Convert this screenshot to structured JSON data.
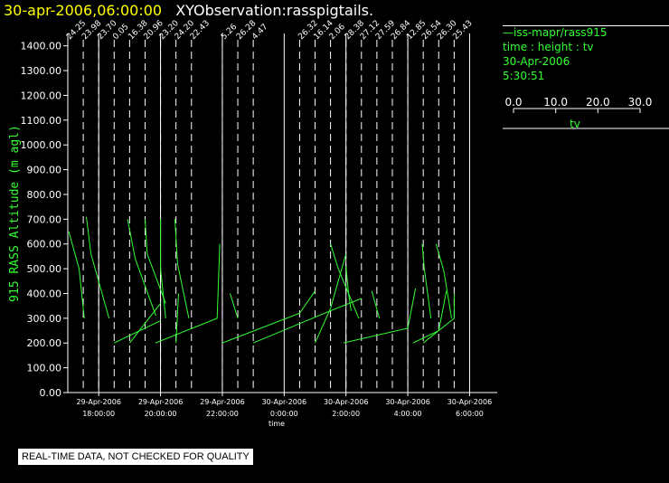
{
  "header": {
    "date_time": "30-apr-2006,06:00:00",
    "observation": "XYObservation:rasspigtails."
  },
  "legend": {
    "source": "iss-mapr/rass915",
    "variables": "time : height : tv",
    "date": "30-Apr-2006",
    "time": "5:30:51",
    "scale_ticks": [
      "0.0",
      "10.0",
      "20.0",
      "30.0"
    ],
    "scale_label": "tv"
  },
  "disclaimer": "REAL-TIME DATA, NOT CHECKED FOR QUALITY",
  "colors": {
    "trace": "#33ff33",
    "title_date": "#ffff00",
    "axis": "#ffffff",
    "ylabel": "#33ff33"
  },
  "chart_data": {
    "type": "line",
    "title": "30-apr-2006,06:00:00  XYObservation:rasspigtails.",
    "xlabel": "time",
    "ylabel": "915 RASS Altitude (m agl)",
    "ylim": [
      0,
      1450
    ],
    "yticks": [
      "0.00",
      "100.00",
      "200.00",
      "300.00",
      "400.00",
      "500.00",
      "600.00",
      "700.00",
      "800.00",
      "900.00",
      "1000.00",
      "1100.00",
      "1200.00",
      "1300.00",
      "1400.00"
    ],
    "xlim": [
      "2006-04-29T17:00",
      "2006-04-30T06:15"
    ],
    "xticks": [
      {
        "t": "2006-04-29T18:00",
        "date": "29-Apr-2006",
        "time": "18:00:00"
      },
      {
        "t": "2006-04-29T20:00",
        "date": "29-Apr-2006",
        "time": "20:00:00"
      },
      {
        "t": "2006-04-29T22:00",
        "date": "29-Apr-2006",
        "time": "22:00:00"
      },
      {
        "t": "2006-04-30T00:00",
        "date": "30-Apr-2006",
        "time": "0:00:00"
      },
      {
        "t": "2006-04-30T02:00",
        "date": "30-Apr-2006",
        "time": "2:00:00"
      },
      {
        "t": "2006-04-30T04:00",
        "date": "30-Apr-2006",
        "time": "4:00:00"
      },
      {
        "t": "2006-04-30T06:00",
        "date": "30-Apr-2006",
        "time": "6:00:00"
      }
    ],
    "profile_markers": [
      {
        "t": "2006-04-29T17:00",
        "label": "24.25"
      },
      {
        "t": "2006-04-29T17:30",
        "label": "23.98"
      },
      {
        "t": "2006-04-29T18:00",
        "label": "23.70"
      },
      {
        "t": "2006-04-29T18:30",
        "label": "0.05"
      },
      {
        "t": "2006-04-29T19:00",
        "label": "16.38"
      },
      {
        "t": "2006-04-29T19:30",
        "label": "20.96"
      },
      {
        "t": "2006-04-29T20:00",
        "label": "23.20"
      },
      {
        "t": "2006-04-29T20:30",
        "label": "24.20"
      },
      {
        "t": "2006-04-29T21:00",
        "label": "22.43"
      },
      {
        "t": "2006-04-29T22:00",
        "label": "5.26"
      },
      {
        "t": "2006-04-29T22:30",
        "label": "26.28"
      },
      {
        "t": "2006-04-29T23:00",
        "label": "4.47"
      },
      {
        "t": "2006-04-30T00:30",
        "label": "26.32"
      },
      {
        "t": "2006-04-30T01:00",
        "label": "16.14"
      },
      {
        "t": "2006-04-30T01:30",
        "label": "2.06"
      },
      {
        "t": "2006-04-30T02:00",
        "label": "28.38"
      },
      {
        "t": "2006-04-30T02:30",
        "label": "27.12"
      },
      {
        "t": "2006-04-30T03:00",
        "label": "27.59"
      },
      {
        "t": "2006-04-30T03:30",
        "label": "26.84"
      },
      {
        "t": "2006-04-30T04:00",
        "label": "12.85"
      },
      {
        "t": "2006-04-30T04:30",
        "label": "26.54"
      },
      {
        "t": "2006-04-30T05:00",
        "label": "26.30"
      },
      {
        "t": "2006-04-30T05:30",
        "label": "25.43"
      }
    ],
    "series": [
      {
        "points": [
          [
            "2006-04-29T17:02",
            650
          ],
          [
            "2006-04-29T17:22",
            500
          ],
          [
            "2006-04-29T17:32",
            300
          ]
        ]
      },
      {
        "points": [
          [
            "2006-04-29T17:36",
            710
          ],
          [
            "2006-04-29T17:45",
            560
          ],
          [
            "2006-04-29T18:20",
            300
          ]
        ]
      },
      {
        "points": [
          [
            "2006-04-29T18:56",
            700
          ],
          [
            "2006-04-29T19:11",
            540
          ],
          [
            "2006-04-29T19:51",
            310
          ]
        ]
      },
      {
        "points": [
          [
            "2006-04-29T19:30",
            700
          ],
          [
            "2006-04-29T19:34",
            560
          ],
          [
            "2006-04-29T20:10",
            360
          ]
        ]
      },
      {
        "points": [
          [
            "2006-04-29T20:00",
            700
          ],
          [
            "2006-04-29T20:00",
            500
          ],
          [
            "2006-04-29T20:10",
            300
          ]
        ]
      },
      {
        "points": [
          [
            "2006-04-29T20:28",
            700
          ],
          [
            "2006-04-29T20:33",
            520
          ],
          [
            "2006-04-29T20:55",
            300
          ]
        ]
      },
      {
        "points": [
          [
            "2006-04-29T18:30",
            200
          ],
          [
            "2006-04-29T20:00",
            290
          ]
        ]
      },
      {
        "points": [
          [
            "2006-04-29T19:00",
            200
          ],
          [
            "2006-04-29T20:00",
            360
          ]
        ]
      },
      {
        "points": [
          [
            "2006-04-29T20:30",
            200
          ],
          [
            "2006-04-29T20:35",
            400
          ]
        ]
      },
      {
        "points": [
          [
            "2006-04-29T19:50",
            200
          ],
          [
            "2006-04-29T21:50",
            300
          ],
          [
            "2006-04-29T21:55",
            600
          ]
        ]
      },
      {
        "points": [
          [
            "2006-04-29T22:15",
            400
          ],
          [
            "2006-04-29T22:30",
            300
          ]
        ]
      },
      {
        "points": [
          [
            "2006-04-29T22:00",
            200
          ],
          [
            "2006-04-30T00:30",
            320
          ],
          [
            "2006-04-30T01:00",
            410
          ]
        ]
      },
      {
        "points": [
          [
            "2006-04-29T23:00",
            200
          ],
          [
            "2006-04-30T01:30",
            330
          ],
          [
            "2006-04-30T02:30",
            380
          ]
        ]
      },
      {
        "points": [
          [
            "2006-04-30T01:00",
            200
          ],
          [
            "2006-04-30T01:30",
            340
          ],
          [
            "2006-04-30T02:00",
            560
          ]
        ]
      },
      {
        "points": [
          [
            "2006-04-30T01:30",
            600
          ],
          [
            "2006-04-30T01:45",
            500
          ],
          [
            "2006-04-30T02:25",
            300
          ]
        ]
      },
      {
        "points": [
          [
            "2006-04-30T02:00",
            510
          ],
          [
            "2006-04-30T02:05",
            400
          ],
          [
            "2006-04-30T02:10",
            330
          ]
        ]
      },
      {
        "points": [
          [
            "2006-04-30T02:50",
            410
          ],
          [
            "2006-04-30T03:05",
            300
          ]
        ]
      },
      {
        "points": [
          [
            "2006-04-30T01:55",
            200
          ],
          [
            "2006-04-30T04:00",
            260
          ],
          [
            "2006-04-30T04:15",
            420
          ]
        ]
      },
      {
        "points": [
          [
            "2006-04-30T04:28",
            600
          ],
          [
            "2006-04-30T04:32",
            500
          ],
          [
            "2006-04-30T04:45",
            300
          ]
        ]
      },
      {
        "points": [
          [
            "2006-04-30T04:55",
            600
          ],
          [
            "2006-04-30T05:10",
            490
          ],
          [
            "2006-04-30T05:25",
            300
          ]
        ]
      },
      {
        "points": [
          [
            "2006-04-30T04:10",
            200
          ],
          [
            "2006-04-30T05:00",
            250
          ],
          [
            "2006-04-30T05:15",
            410
          ]
        ]
      },
      {
        "points": [
          [
            "2006-04-30T04:30",
            200
          ],
          [
            "2006-04-30T05:30",
            300
          ],
          [
            "2006-04-30T05:30",
            400
          ]
        ]
      }
    ]
  }
}
